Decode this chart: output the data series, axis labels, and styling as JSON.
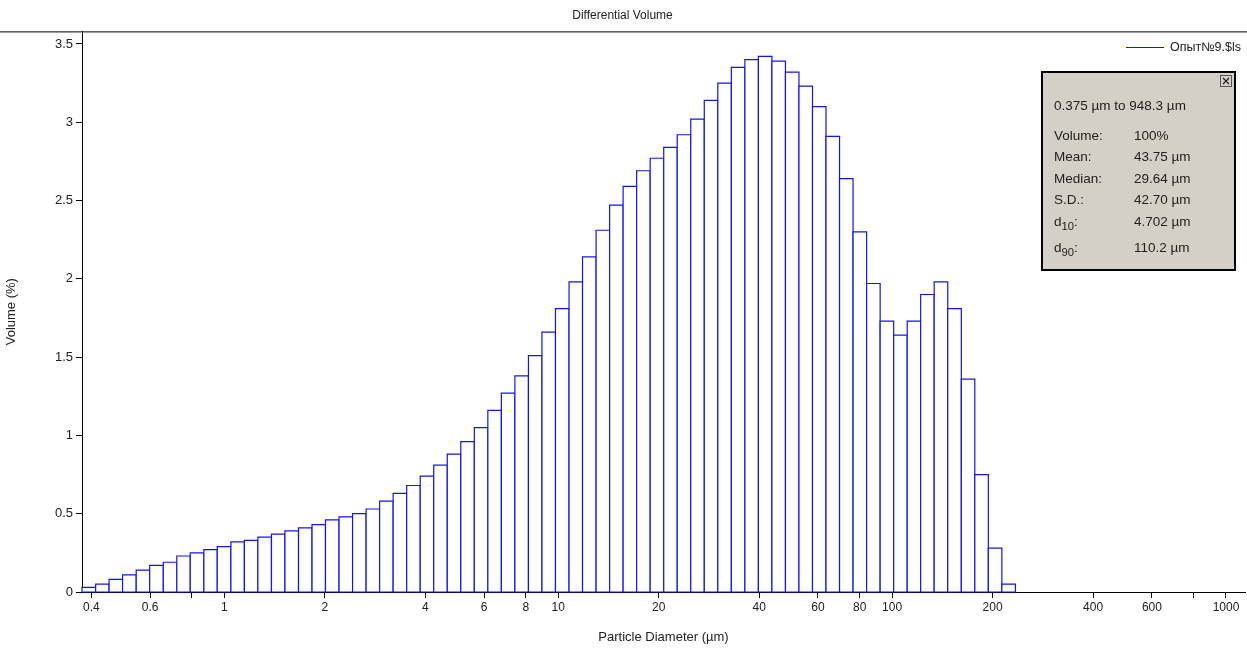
{
  "chart_data": {
    "type": "histogram",
    "title": "Differential Volume",
    "xlabel": "Particle Diameter (µm)",
    "ylabel": "Volume (%)",
    "log": "x",
    "legend": "top right",
    "xlim": [
      0.375,
      1140
    ],
    "ylim": [
      0,
      3.58
    ],
    "xticks": [
      0.4,
      0.6,
      {
        "value": 0.8,
        "label": null
      },
      1,
      2,
      4,
      6,
      8,
      10,
      20,
      40,
      60,
      80,
      100,
      200,
      400,
      600,
      {
        "value": 800,
        "label": null
      },
      1000
    ],
    "yticks": [
      0,
      0.5,
      1,
      1.5,
      2,
      2.5,
      3,
      3.5
    ],
    "bins": [
      0.375,
      0.412,
      0.452,
      0.496,
      0.545,
      0.598,
      0.657,
      0.721,
      0.791,
      0.869,
      0.953,
      1.047,
      1.149,
      1.261,
      1.385,
      1.52,
      1.669,
      1.832,
      2.01,
      2.207,
      2.423,
      2.66,
      2.92,
      3.205,
      3.519,
      3.863,
      4.24,
      4.655,
      5.11,
      5.61,
      6.158,
      6.76,
      7.421,
      8.147,
      8.943,
      9.817,
      10.78,
      11.83,
      12.99,
      14.26,
      15.65,
      17.18,
      18.86,
      20.71,
      22.73,
      24.95,
      27.39,
      30.07,
      33.01,
      36.24,
      39.78,
      43.67,
      47.94,
      52.62,
      57.77,
      63.41,
      69.61,
      76.42,
      83.9,
      92.1,
      101.1,
      111,
      121.8,
      133.7,
      146.8,
      161.2,
      176.9,
      194.2,
      213.2,
      234.1
    ],
    "series": [
      {
        "name": "Опыт№9.$ls",
        "color": "#1414f0",
        "values": [
          0.03,
          0.05,
          0.08,
          0.11,
          0.14,
          0.17,
          0.19,
          0.23,
          0.25,
          0.27,
          0.29,
          0.32,
          0.33,
          0.35,
          0.37,
          0.39,
          0.41,
          0.43,
          0.46,
          0.48,
          0.5,
          0.53,
          0.58,
          0.63,
          0.68,
          0.74,
          0.81,
          0.88,
          0.96,
          1.05,
          1.16,
          1.27,
          1.38,
          1.51,
          1.66,
          1.81,
          1.98,
          2.14,
          2.31,
          2.47,
          2.59,
          2.69,
          2.77,
          2.84,
          2.92,
          3.02,
          3.14,
          3.25,
          3.35,
          3.4,
          3.42,
          3.39,
          3.32,
          3.23,
          3.1,
          2.91,
          2.64,
          2.3,
          1.97,
          1.73,
          1.64,
          1.73,
          1.9,
          1.98,
          1.81,
          1.36,
          0.75,
          0.28,
          0.05
        ]
      }
    ],
    "annotations": [
      "0.375 µm to 948.3 µm",
      "Volume: 100%",
      "Mean: 43.75 µm",
      "Median: 29.64 µm",
      "S.D.: 42.70 µm",
      "d$_{10}$: 4.702 µm",
      "d$_{90}$: 110.2 µm"
    ]
  }
}
